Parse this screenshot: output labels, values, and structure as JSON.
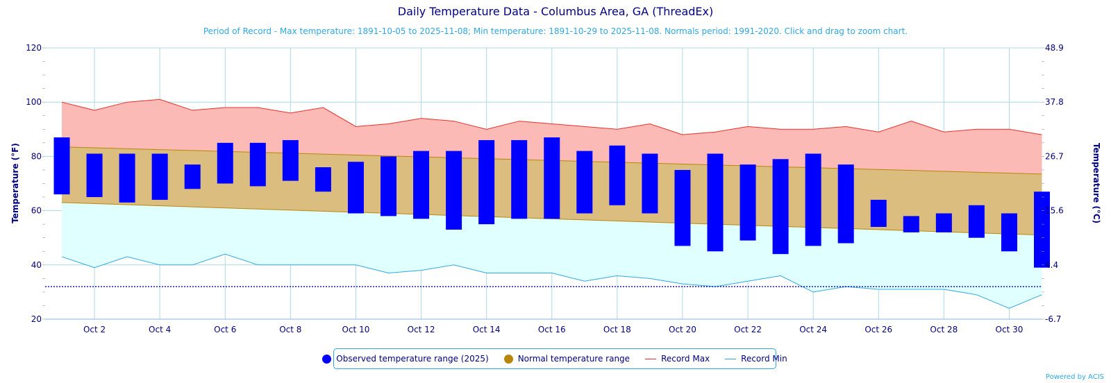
{
  "chart_data": {
    "type": "bar",
    "title": "Daily Temperature Data - Columbus Area, GA (ThreadEx)",
    "subtitle": "Period of Record - Max temperature: 1891-10-05 to 2025-11-08; Min temperature: 1891-10-29 to 2025-11-08. Normals period: 1991-2020. Click and drag to zoom chart.",
    "ylabel": "Temperature (°F)",
    "y2label": "Temperature (°C)",
    "ylim": [
      20,
      120
    ],
    "y_ticks": [
      "20",
      "40",
      "60",
      "80",
      "100",
      "120"
    ],
    "y2_ticks": [
      "-6.7",
      "4.4",
      "15.6",
      "26.7",
      "37.8",
      "48.9"
    ],
    "x_days": [
      1,
      2,
      3,
      4,
      5,
      6,
      7,
      8,
      9,
      10,
      11,
      12,
      13,
      14,
      15,
      16,
      17,
      18,
      19,
      20,
      21,
      22,
      23,
      24,
      25,
      26,
      27,
      28,
      29,
      30,
      31
    ],
    "x_tick_labels": [
      "Oct 2",
      "Oct 4",
      "Oct 6",
      "Oct 8",
      "Oct 10",
      "Oct 12",
      "Oct 14",
      "Oct 16",
      "Oct 18",
      "Oct 20",
      "Oct 22",
      "Oct 24",
      "Oct 26",
      "Oct 28",
      "Oct 30"
    ],
    "freezing_line": 32,
    "grid": true,
    "legend_position": "bottom-center",
    "series": [
      {
        "name": "Observed temperature range (2025)",
        "kind": "range-bar",
        "color": "#0000ff",
        "low": [
          66,
          65,
          63,
          64,
          68,
          70,
          69,
          71,
          67,
          59,
          58,
          57,
          53,
          55,
          57,
          57,
          59,
          62,
          59,
          47,
          45,
          49,
          44,
          47,
          48,
          54,
          52,
          52,
          50,
          45,
          39
        ],
        "high": [
          87,
          81,
          81,
          81,
          77,
          85,
          85,
          86,
          76,
          78,
          80,
          82,
          82,
          86,
          86,
          87,
          82,
          84,
          81,
          75,
          81,
          77,
          79,
          81,
          77,
          64,
          58,
          59,
          62,
          59,
          67
        ]
      },
      {
        "name": "Normal temperature range",
        "kind": "range-area",
        "color": "#b8860b",
        "fill": "#dbbd80",
        "low_start": 63,
        "low_end": 51,
        "high_start": 83.5,
        "high_end": 73.5
      },
      {
        "name": "Record Max",
        "kind": "line",
        "color": "#e8302a",
        "fill": "#fbbab6",
        "values": [
          100,
          97,
          100,
          101,
          97,
          98,
          98,
          96,
          98,
          91,
          92,
          94,
          93,
          90,
          93,
          92,
          91,
          90,
          92,
          88,
          89,
          91,
          90,
          90,
          91,
          89,
          93,
          89,
          90,
          90,
          88
        ]
      },
      {
        "name": "Record Min",
        "kind": "line",
        "color": "#2fa8e0",
        "fill": "#e0ffff",
        "values": [
          43,
          39,
          43,
          40,
          40,
          44,
          40,
          40,
          40,
          40,
          37,
          38,
          40,
          37,
          37,
          37,
          34,
          36,
          35,
          33,
          32,
          34,
          36,
          30,
          32,
          31,
          31,
          31,
          29,
          24,
          29
        ]
      }
    ]
  },
  "legend": {
    "observed": "Observed temperature range (2025)",
    "normal": "Normal temperature range",
    "record_max": "Record Max",
    "record_min": "Record Min"
  },
  "credit": "Powered by ACIS"
}
